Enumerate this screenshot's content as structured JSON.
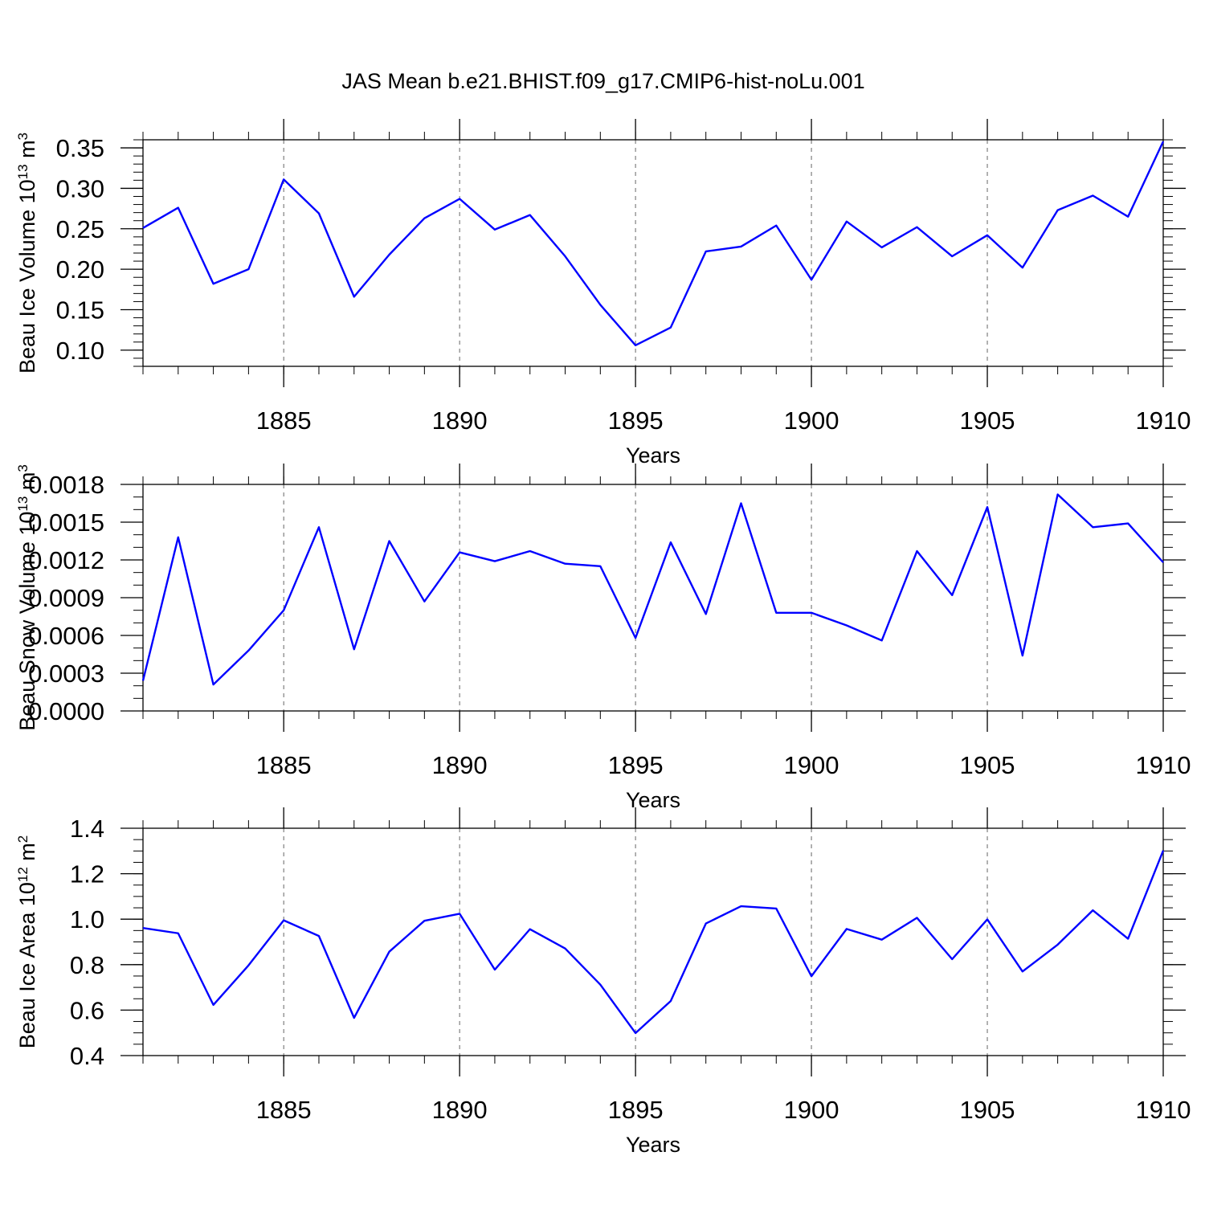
{
  "title": "JAS Mean b.e21.BHIST.f09_g17.CMIP6-hist-noLu.001",
  "line_color": "#0000ff",
  "chart_data": [
    {
      "type": "line",
      "ylabel_main": "Beau Ice Volume 10",
      "ylabel_sup": "13",
      "ylabel_unit": " m",
      "ylabel_unit_sup": "3",
      "xlabel": "Years",
      "xlim": [
        1881,
        1910
      ],
      "ylim": [
        0.08,
        0.36
      ],
      "yticks": [
        0.1,
        0.15,
        0.2,
        0.25,
        0.3,
        0.35
      ],
      "ytick_labels": [
        "0.10",
        "0.15",
        "0.20",
        "0.25",
        "0.30",
        "0.35"
      ],
      "xticks": [
        1885,
        1890,
        1895,
        1900,
        1905,
        1910
      ],
      "xtick_labels": [
        "1885",
        "1890",
        "1895",
        "1900",
        "1905",
        "1910"
      ],
      "x": [
        1881,
        1882,
        1883,
        1884,
        1885,
        1886,
        1887,
        1888,
        1889,
        1890,
        1891,
        1892,
        1893,
        1894,
        1895,
        1896,
        1897,
        1898,
        1899,
        1900,
        1901,
        1902,
        1903,
        1904,
        1905,
        1906,
        1907,
        1908,
        1909,
        1910
      ],
      "values": [
        0.251,
        0.276,
        0.182,
        0.2,
        0.311,
        0.269,
        0.166,
        0.218,
        0.263,
        0.287,
        0.249,
        0.267,
        0.216,
        0.156,
        0.106,
        0.128,
        0.222,
        0.228,
        0.254,
        0.187,
        0.259,
        0.227,
        0.252,
        0.216,
        0.242,
        0.202,
        0.273,
        0.291,
        0.265,
        0.358
      ]
    },
    {
      "type": "line",
      "ylabel_main": "Beau Snow Volume 10",
      "ylabel_sup": "13",
      "ylabel_unit": " m",
      "ylabel_unit_sup": "3",
      "xlabel": "Years",
      "xlim": [
        1881,
        1910
      ],
      "ylim": [
        0.0,
        0.0018
      ],
      "yticks": [
        0.0,
        0.0003,
        0.0006,
        0.0009,
        0.0012,
        0.0015,
        0.0018
      ],
      "ytick_labels": [
        "0.0000",
        "0.0003",
        "0.0006",
        "0.0009",
        "0.0012",
        "0.0015",
        "0.0018"
      ],
      "xticks": [
        1885,
        1890,
        1895,
        1900,
        1905,
        1910
      ],
      "xtick_labels": [
        "1885",
        "1890",
        "1895",
        "1900",
        "1905",
        "1910"
      ],
      "x": [
        1881,
        1882,
        1883,
        1884,
        1885,
        1886,
        1887,
        1888,
        1889,
        1890,
        1891,
        1892,
        1893,
        1894,
        1895,
        1896,
        1897,
        1898,
        1899,
        1900,
        1901,
        1902,
        1903,
        1904,
        1905,
        1906,
        1907,
        1908,
        1909,
        1910
      ],
      "values": [
        0.00024,
        0.00138,
        0.00021,
        0.00048,
        0.0008,
        0.00146,
        0.00049,
        0.00135,
        0.00087,
        0.00126,
        0.00119,
        0.00127,
        0.00117,
        0.00115,
        0.00058,
        0.00134,
        0.00077,
        0.00165,
        0.00078,
        0.00078,
        0.00068,
        0.00056,
        0.00127,
        0.00092,
        0.00162,
        0.00044,
        0.00172,
        0.00146,
        0.00149,
        0.00118
      ]
    },
    {
      "type": "line",
      "ylabel_main": "Beau Ice Area 10",
      "ylabel_sup": "12",
      "ylabel_unit": " m",
      "ylabel_unit_sup": "2",
      "xlabel": "Years",
      "xlim": [
        1881,
        1910
      ],
      "ylim": [
        0.4,
        1.4
      ],
      "yticks": [
        0.4,
        0.6,
        0.8,
        1.0,
        1.2,
        1.4
      ],
      "ytick_labels": [
        "0.4",
        "0.6",
        "0.8",
        "1.0",
        "1.2",
        "1.4"
      ],
      "xticks": [
        1885,
        1890,
        1895,
        1900,
        1905,
        1910
      ],
      "xtick_labels": [
        "1885",
        "1890",
        "1895",
        "1900",
        "1905",
        "1910"
      ],
      "x": [
        1881,
        1882,
        1883,
        1884,
        1885,
        1886,
        1887,
        1888,
        1889,
        1890,
        1891,
        1892,
        1893,
        1894,
        1895,
        1896,
        1897,
        1898,
        1899,
        1900,
        1901,
        1902,
        1903,
        1904,
        1905,
        1906,
        1907,
        1908,
        1909,
        1910
      ],
      "values": [
        0.961,
        0.938,
        0.623,
        0.797,
        0.995,
        0.926,
        0.566,
        0.857,
        0.993,
        1.024,
        0.778,
        0.956,
        0.871,
        0.712,
        0.499,
        0.64,
        0.981,
        1.057,
        1.047,
        0.749,
        0.957,
        0.91,
        1.006,
        0.824,
        0.999,
        0.77,
        0.888,
        1.039,
        0.914,
        1.302
      ]
    }
  ]
}
